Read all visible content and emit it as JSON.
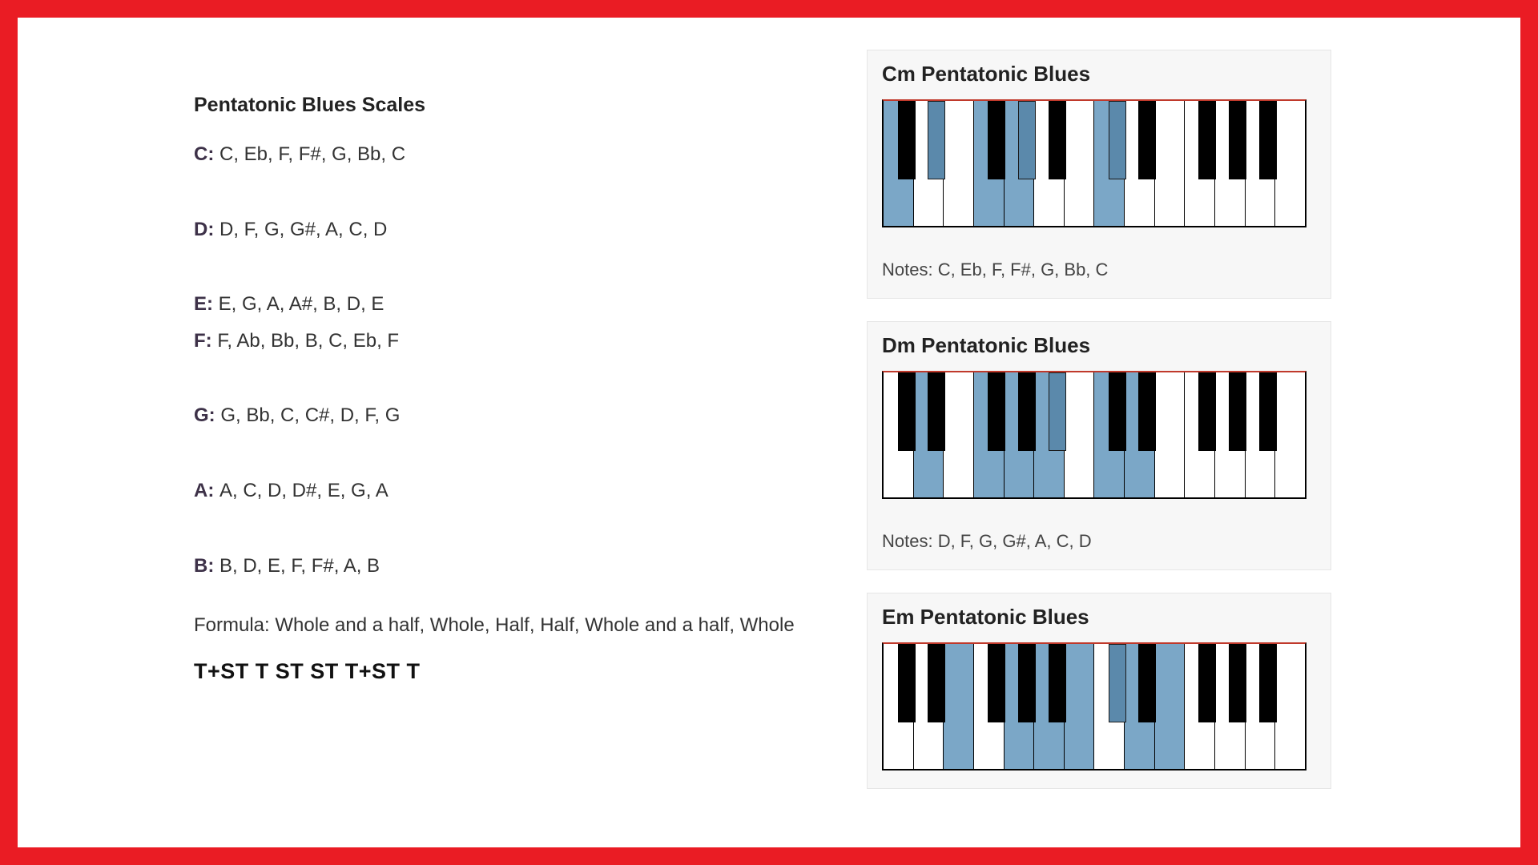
{
  "colors": {
    "frame": "#ea1c24",
    "highlight_white": "#7ba7c7",
    "highlight_black": "#5b89ab",
    "card_bg": "#f7f7f7",
    "keyboard_top_border": "#c0392b"
  },
  "left": {
    "title": "Pentatonic Blues Scales",
    "scales": [
      {
        "key": "C:",
        "notes": "C, Eb, F, F#, G, Bb, C",
        "gap_after": "lg"
      },
      {
        "key": "D:",
        "notes": "D, F, G, G#, A, C, D",
        "gap_after": "lg"
      },
      {
        "key": "E:",
        "notes": "E, G, A, A#, B, D, E",
        "gap_after": "sm"
      },
      {
        "key": "F:",
        "notes": "F, Ab, Bb, B, C, Eb, F",
        "gap_after": "lg"
      },
      {
        "key": "G:",
        "notes": "G, Bb, C, C#, D, F, G",
        "gap_after": "lg"
      },
      {
        "key": "A:",
        "notes": "A, C, D, D#, E, G, A",
        "gap_after": "lg"
      },
      {
        "key": "B:",
        "notes": "B, D, E, F, F#, A, B",
        "gap_after": "none"
      }
    ],
    "formula_label": "Formula: Whole and a half, Whole, Half, Half, Whole and a half, Whole",
    "formula_short": "T+ST  T ST ST T+ST T"
  },
  "keyboard": {
    "white_count": 14,
    "black_positions_pct": [
      5.45,
      12.6,
      26.9,
      34.05,
      41.2,
      55.45,
      62.6,
      76.9,
      84.05,
      91.2
    ]
  },
  "diagrams": [
    {
      "title": "Cm Pentatonic Blues",
      "notes_label": "Notes: C, Eb, F, F#, G, Bb, C",
      "white_hl": [
        0,
        3,
        4,
        7
      ],
      "black_hl": [
        1,
        3,
        5
      ],
      "show_notes": true
    },
    {
      "title": "Dm Pentatonic Blues",
      "notes_label": "Notes: D, F, G, G#, A, C, D",
      "white_hl": [
        1,
        3,
        4,
        5,
        7,
        8
      ],
      "black_hl": [
        4
      ],
      "show_notes": true
    },
    {
      "title": "Em Pentatonic Blues",
      "notes_label": "",
      "white_hl": [
        2,
        4,
        5,
        6,
        8,
        9
      ],
      "black_hl": [
        5
      ],
      "show_notes": false
    }
  ]
}
